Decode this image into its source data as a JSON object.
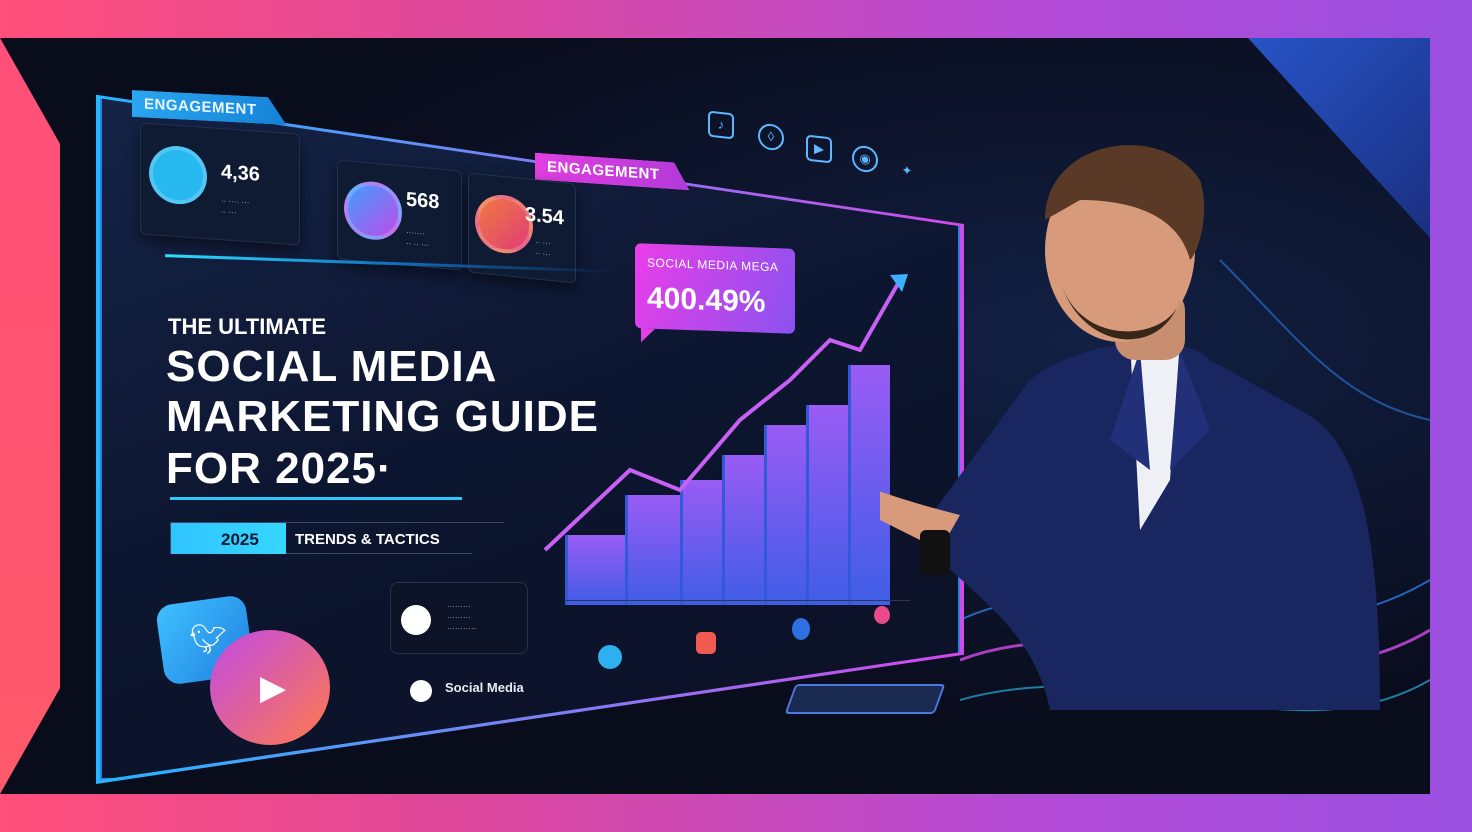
{
  "engagement_tag": "ENGAGEMENT",
  "engagement_tag_2": "ENGAGEMENT",
  "stats": [
    {
      "value": "4,36",
      "icon": "chat-bubble-icon",
      "color": "#28b8f0"
    },
    {
      "value": "568",
      "icon": "message-icon",
      "color": "#8a5cf0"
    },
    {
      "value": "3.54",
      "icon": "instagram-icon",
      "color": "#f0505a"
    }
  ],
  "callout": {
    "label": "SOCIAL MEDIA MEGA",
    "value": "400.49%"
  },
  "headline": {
    "kicker": "THE ULTIMATE",
    "line1": "SOCIAL MEDIA",
    "line2": "MARKETING GUIDE",
    "line3": "FOR 2025·"
  },
  "badge": {
    "year": "2025",
    "text": "TRENDS & TACTICS"
  },
  "footer_label": "Social Media",
  "colors": {
    "accent_cyan": "#2ec8ff",
    "accent_pink": "#e23ee0",
    "frame_left": "#ff4f7a",
    "frame_right": "#9a4fe0"
  }
}
